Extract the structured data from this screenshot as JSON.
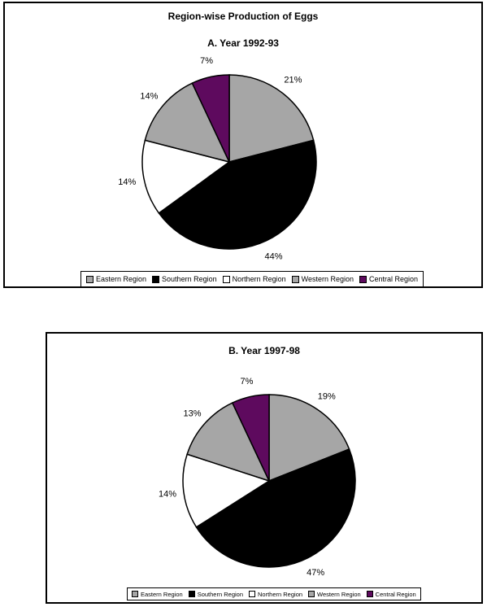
{
  "title": "Region-wise Production of Eggs",
  "chart_data": [
    {
      "type": "pie",
      "title": "A. Year 1992-93",
      "categories": [
        "Eastern Region",
        "Southern Region",
        "Northern Region",
        "Western Region",
        "Central Region"
      ],
      "values": [
        21,
        44,
        14,
        14,
        7
      ],
      "labels": [
        "21%",
        "44%",
        "14%",
        "14%",
        "7%"
      ],
      "colors": [
        "#a6a6a6",
        "#000000",
        "#ffffff",
        "#a6a6a6",
        "#5e0a5e"
      ],
      "legend": "bottom"
    },
    {
      "type": "pie",
      "title": "B. Year 1997-98",
      "categories": [
        "Eastern Region",
        "Southern Region",
        "Northern Region",
        "Western Region",
        "Central Region"
      ],
      "values": [
        19,
        47,
        14,
        13,
        7
      ],
      "labels": [
        "19%",
        "47%",
        "14%",
        "13%",
        "7%"
      ],
      "colors": [
        "#a6a6a6",
        "#000000",
        "#ffffff",
        "#a6a6a6",
        "#5e0a5e"
      ],
      "legend": "bottom"
    }
  ]
}
